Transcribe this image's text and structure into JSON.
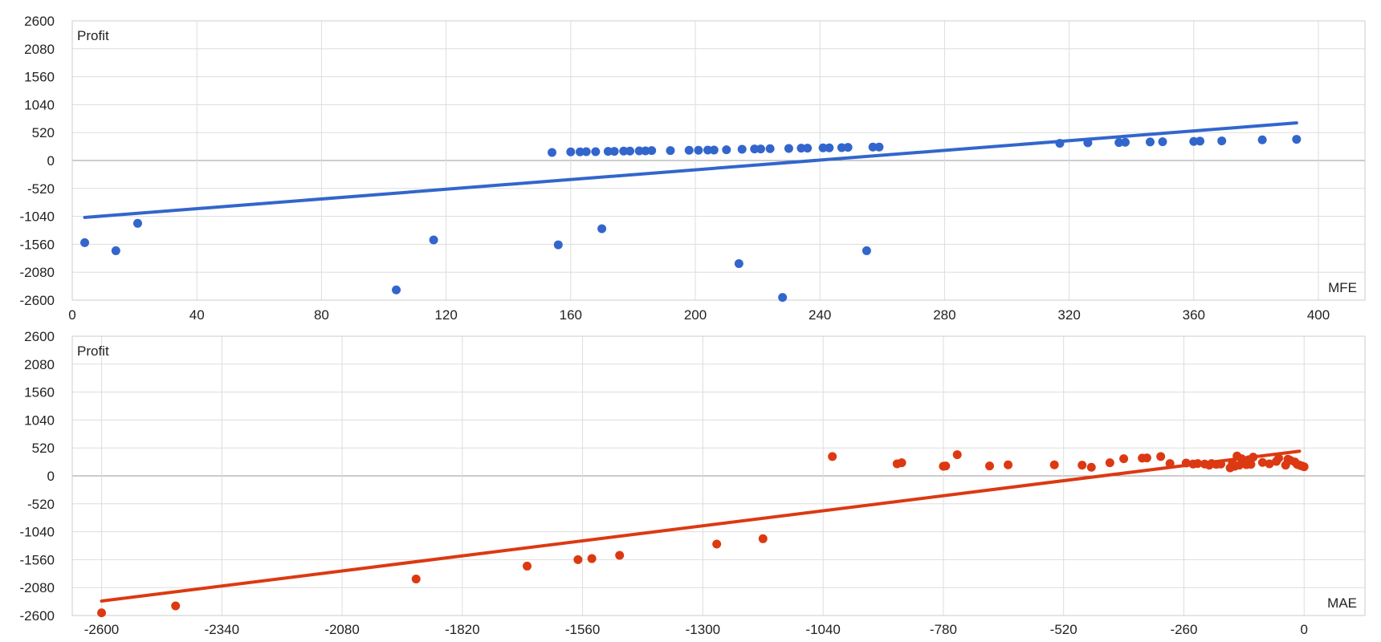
{
  "chart_data": [
    {
      "type": "scatter",
      "ylabel": "Profit",
      "xlabel": "MFE",
      "xlim": [
        0,
        400
      ],
      "ylim": [
        -2600,
        2600
      ],
      "x_ticks": [
        "0",
        "40",
        "80",
        "120",
        "160",
        "200",
        "240",
        "280",
        "320",
        "360",
        "400"
      ],
      "y_ticks": [
        "2600",
        "2080",
        "1560",
        "1040",
        "520",
        "0",
        "-520",
        "-1040",
        "-1560",
        "-2080",
        "-2600"
      ],
      "grid": true,
      "color": "#3366cc",
      "points": [
        [
          4,
          -1530
        ],
        [
          14,
          -1680
        ],
        [
          21,
          -1170
        ],
        [
          104,
          -2410
        ],
        [
          116,
          -1480
        ],
        [
          154,
          150
        ],
        [
          156,
          -1570
        ],
        [
          160,
          160
        ],
        [
          163,
          160
        ],
        [
          165,
          165
        ],
        [
          168,
          165
        ],
        [
          170,
          -1270
        ],
        [
          172,
          170
        ],
        [
          174,
          170
        ],
        [
          177,
          175
        ],
        [
          179,
          175
        ],
        [
          182,
          180
        ],
        [
          184,
          180
        ],
        [
          186,
          185
        ],
        [
          192,
          185
        ],
        [
          198,
          190
        ],
        [
          201,
          190
        ],
        [
          204,
          195
        ],
        [
          206,
          195
        ],
        [
          210,
          200
        ],
        [
          214,
          -1920
        ],
        [
          215,
          210
        ],
        [
          219,
          215
        ],
        [
          221,
          215
        ],
        [
          224,
          220
        ],
        [
          228,
          -2550
        ],
        [
          230,
          225
        ],
        [
          234,
          230
        ],
        [
          236,
          230
        ],
        [
          241,
          235
        ],
        [
          243,
          235
        ],
        [
          247,
          240
        ],
        [
          249,
          245
        ],
        [
          255,
          -1680
        ],
        [
          257,
          250
        ],
        [
          259,
          250
        ],
        [
          317,
          320
        ],
        [
          326,
          330
        ],
        [
          336,
          335
        ],
        [
          338,
          340
        ],
        [
          346,
          345
        ],
        [
          350,
          350
        ],
        [
          360,
          355
        ],
        [
          362,
          360
        ],
        [
          369,
          365
        ],
        [
          382,
          385
        ],
        [
          393,
          395
        ]
      ],
      "trendline": {
        "x": [
          4,
          393
        ],
        "y": [
          -1060,
          700
        ]
      }
    },
    {
      "type": "scatter",
      "ylabel": "Profit",
      "xlabel": "MAE",
      "xlim": [
        -2620,
        10
      ],
      "ylim": [
        -2600,
        2600
      ],
      "x_ticks": [
        "-2600",
        "-2340",
        "-2080",
        "-1820",
        "-1560",
        "-1300",
        "-1040",
        "-780",
        "-520",
        "-260",
        "0"
      ],
      "y_ticks": [
        "2600",
        "2080",
        "1560",
        "1040",
        "520",
        "0",
        "-520",
        "-1040",
        "-1560",
        "-2080",
        "-2600"
      ],
      "grid": true,
      "color": "#dc3912",
      "points": [
        [
          -2600,
          -2550
        ],
        [
          -2440,
          -2420
        ],
        [
          -1920,
          -1920
        ],
        [
          -1680,
          -1680
        ],
        [
          -1570,
          -1560
        ],
        [
          -1540,
          -1540
        ],
        [
          -1480,
          -1480
        ],
        [
          -1270,
          -1270
        ],
        [
          -1170,
          -1170
        ],
        [
          -1020,
          360
        ],
        [
          -880,
          225
        ],
        [
          -870,
          245
        ],
        [
          -780,
          180
        ],
        [
          -775,
          185
        ],
        [
          -750,
          395
        ],
        [
          -680,
          185
        ],
        [
          -640,
          205
        ],
        [
          -540,
          205
        ],
        [
          -480,
          200
        ],
        [
          -460,
          160
        ],
        [
          -420,
          245
        ],
        [
          -390,
          320
        ],
        [
          -350,
          330
        ],
        [
          -340,
          335
        ],
        [
          -310,
          360
        ],
        [
          -290,
          230
        ],
        [
          -255,
          240
        ],
        [
          -240,
          220
        ],
        [
          -230,
          230
        ],
        [
          -215,
          220
        ],
        [
          -205,
          200
        ],
        [
          -200,
          230
        ],
        [
          -190,
          215
        ],
        [
          -180,
          220
        ],
        [
          -160,
          150
        ],
        [
          -155,
          240
        ],
        [
          -150,
          180
        ],
        [
          -145,
          370
        ],
        [
          -140,
          200
        ],
        [
          -135,
          320
        ],
        [
          -130,
          260
        ],
        [
          -125,
          210
        ],
        [
          -120,
          300
        ],
        [
          -115,
          215
        ],
        [
          -110,
          350
        ],
        [
          -90,
          250
        ],
        [
          -75,
          225
        ],
        [
          -60,
          270
        ],
        [
          -55,
          330
        ],
        [
          -40,
          200
        ],
        [
          -35,
          310
        ],
        [
          -30,
          290
        ],
        [
          -20,
          260
        ],
        [
          -15,
          215
        ],
        [
          -10,
          200
        ],
        [
          -5,
          185
        ],
        [
          0,
          170
        ]
      ],
      "trendline": {
        "x": [
          -2600,
          -10
        ],
        "y": [
          -2330,
          460
        ]
      }
    }
  ]
}
